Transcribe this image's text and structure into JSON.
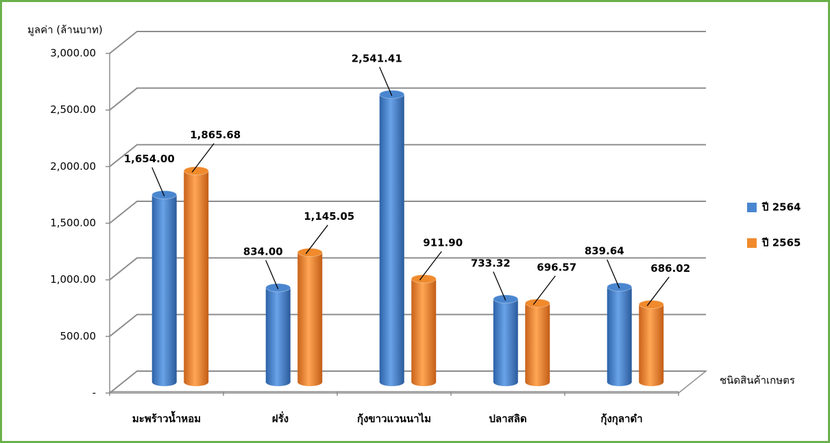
{
  "chart_data": {
    "type": "bar3d",
    "y_label": "มูลค่า (ล้านบาท)",
    "x_label": "ชนิดสินค้าเกษตร",
    "categories": [
      "มะพร้าวน้ำหอม",
      "ฝรั่ง",
      "กุ้งขาวแวนนาไม",
      "ปลาสลิด",
      "กุ้งกุลาดำ"
    ],
    "series": [
      {
        "name": "ปี 2564",
        "color": "#4a86cf",
        "values": [
          1654.0,
          834.0,
          2541.41,
          733.32,
          839.64
        ],
        "value_labels": [
          "1,654.00",
          "834.00",
          "2,541.41",
          "733.32",
          "839.64"
        ]
      },
      {
        "name": "ปี 2565",
        "color": "#f08a2c",
        "values": [
          1865.68,
          1145.05,
          911.9,
          696.57,
          686.02
        ],
        "value_labels": [
          "1,865.68",
          "1,145.05",
          "911.90",
          "696.57",
          "686.02"
        ]
      }
    ],
    "ylim": [
      0,
      3000
    ],
    "yticks": [
      {
        "value": 0,
        "label": "-"
      },
      {
        "value": 500,
        "label": "500.00"
      },
      {
        "value": 1000,
        "label": "1,000.00"
      },
      {
        "value": 1500,
        "label": "1,500.00"
      },
      {
        "value": 2000,
        "label": "2,000.00"
      },
      {
        "value": 2500,
        "label": "2,500.00"
      },
      {
        "value": 3000,
        "label": "3,000.00"
      }
    ],
    "grid": true,
    "legend": "right"
  }
}
